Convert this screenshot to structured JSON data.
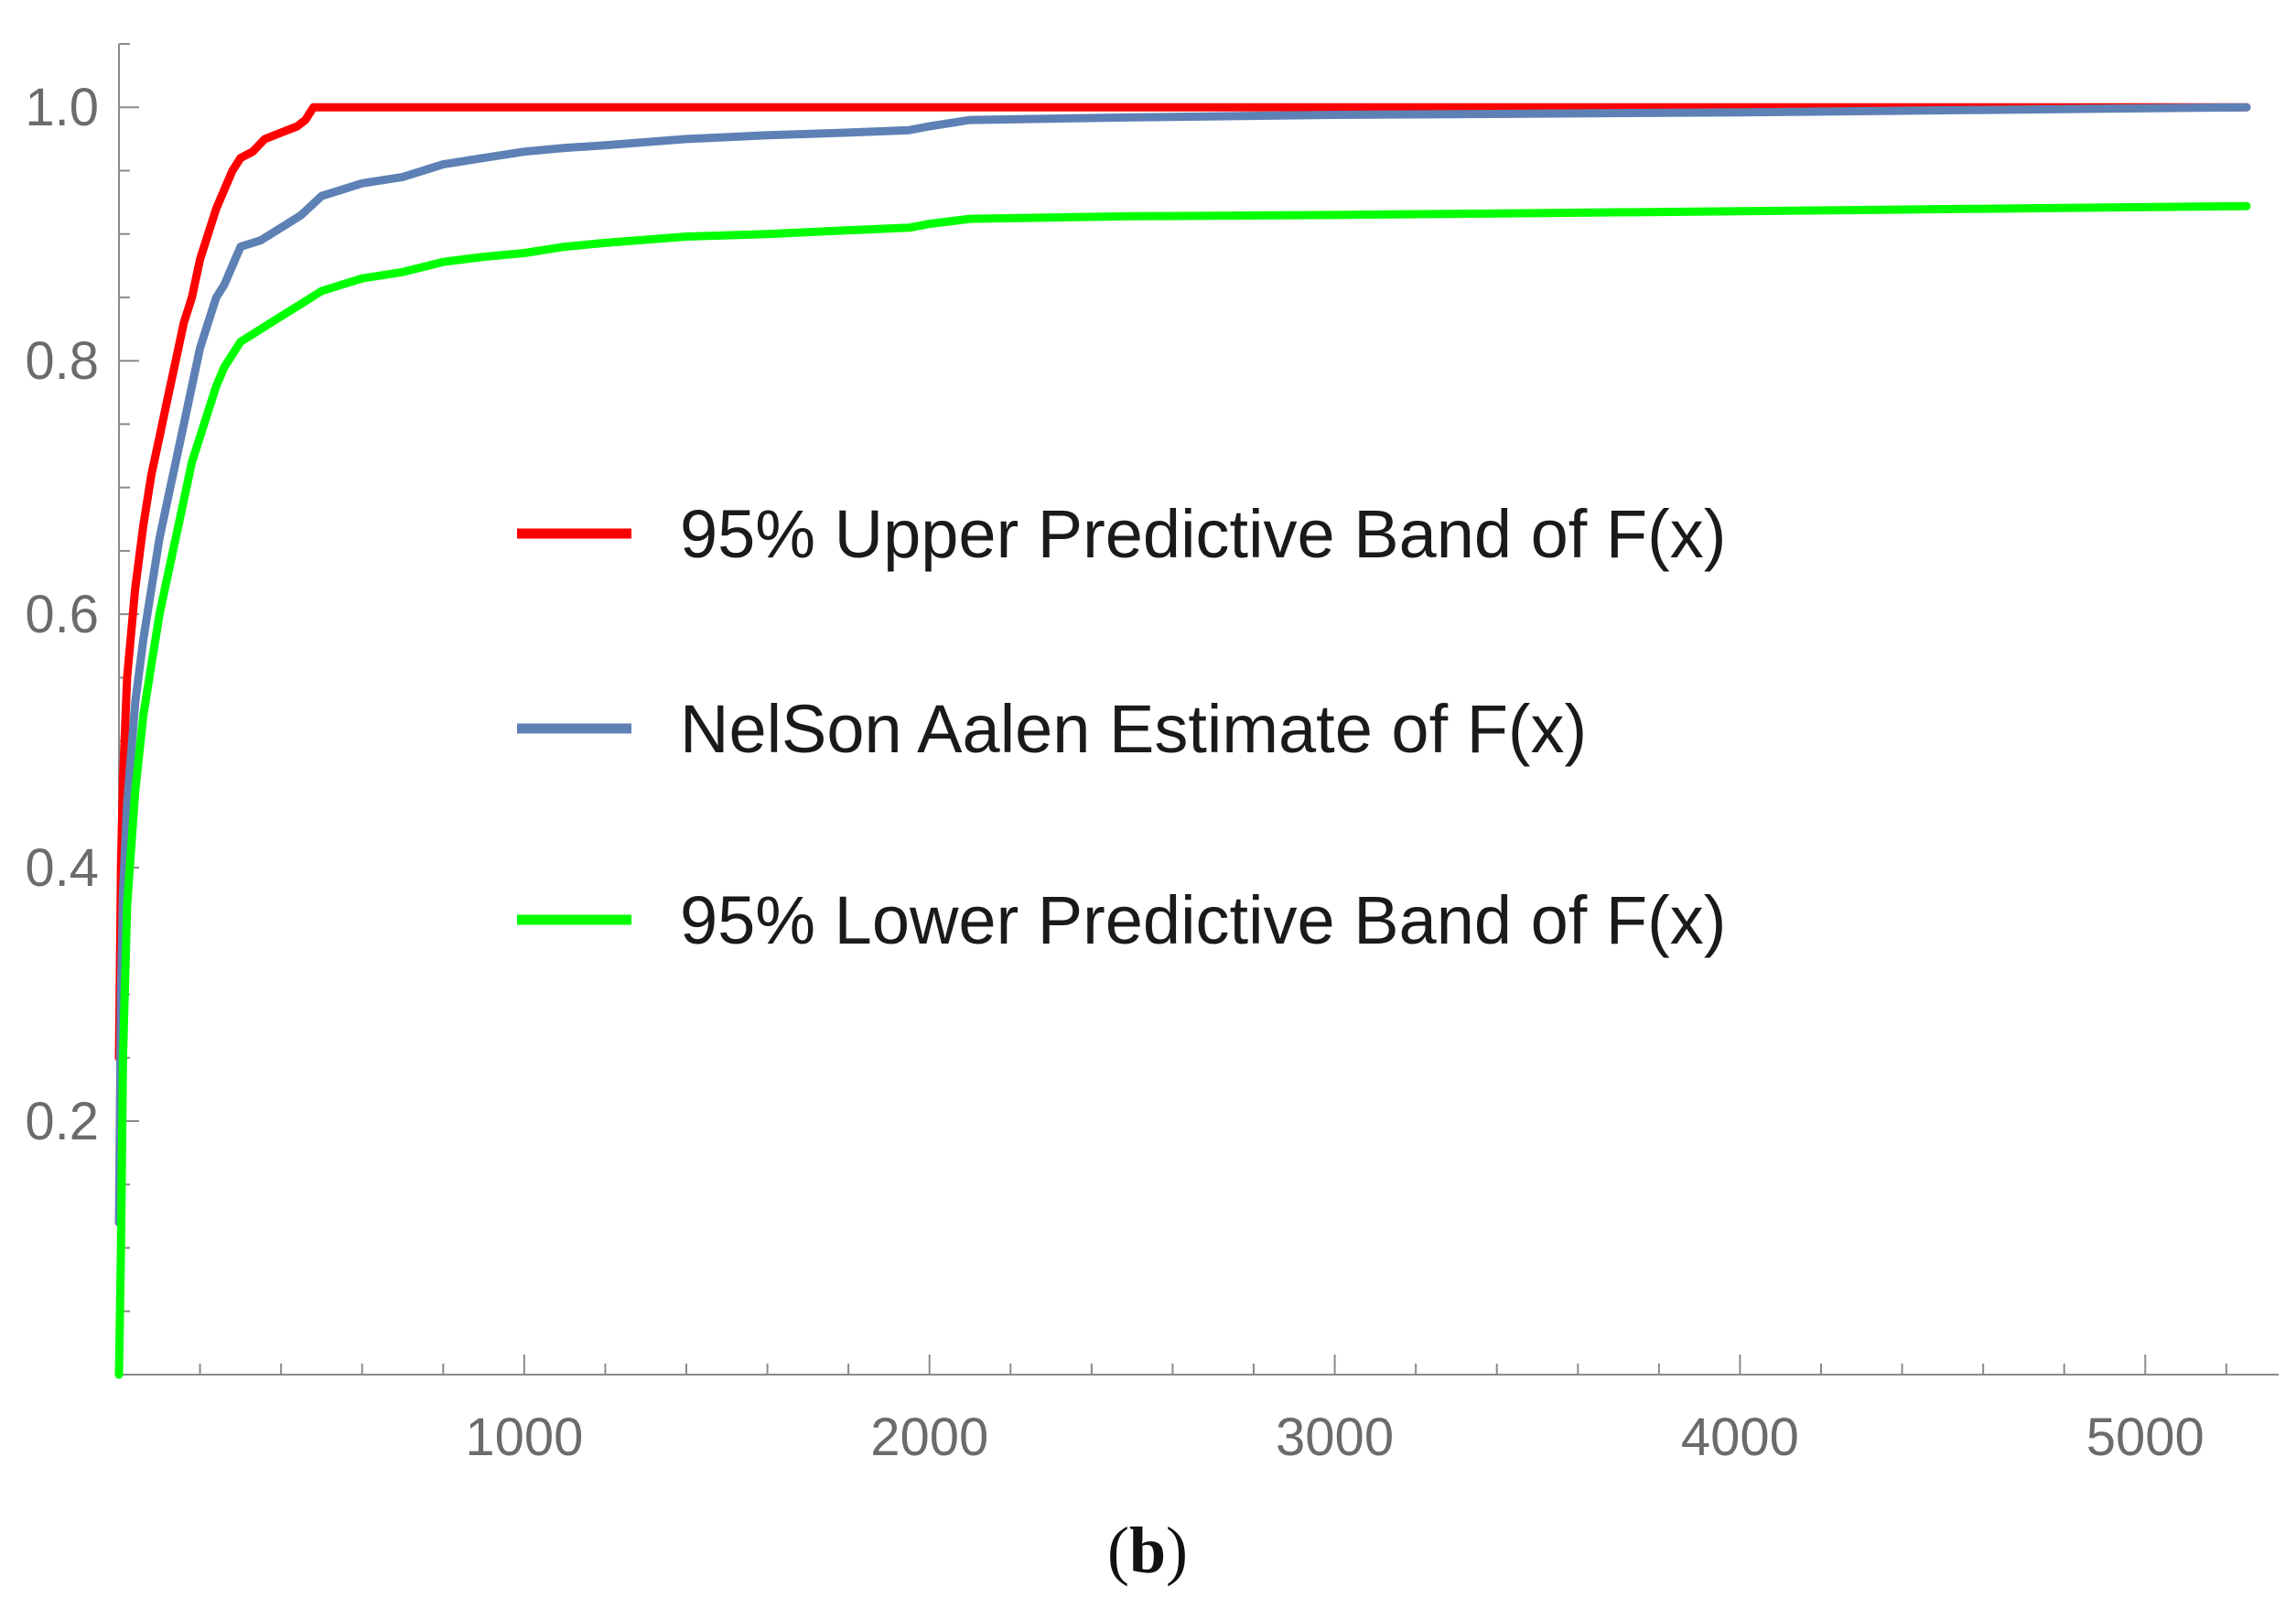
{
  "chart_data": {
    "type": "line",
    "title": "",
    "caption": {
      "open": "(",
      "letter": "b",
      "close": ")"
    },
    "xlabel": "",
    "ylabel": "",
    "xlim": [
      0,
      5250
    ],
    "ylim": [
      0,
      1.05
    ],
    "x_ticks": [
      1000,
      2000,
      3000,
      4000,
      5000
    ],
    "x_tick_labels": [
      "1000",
      "2000",
      "3000",
      "4000",
      "5000"
    ],
    "y_ticks": [
      0.2,
      0.4,
      0.6,
      0.8,
      1.0
    ],
    "y_tick_labels": [
      "0.2",
      "0.4",
      "0.6",
      "0.8",
      "1.0"
    ],
    "grid": false,
    "legend_position": "center",
    "series": [
      {
        "name": "95% Upper Predictive Band of F(x)",
        "color": "#ff0000",
        "x": [
          0,
          5,
          10,
          20,
          40,
          60,
          80,
          100,
          120,
          140,
          160,
          180,
          200,
          220,
          240,
          260,
          280,
          300,
          330,
          360,
          400,
          440,
          460,
          470,
          480,
          500,
          1000,
          2000,
          3000,
          4000,
          5250
        ],
        "y": [
          0.25,
          0.4,
          0.47,
          0.55,
          0.62,
          0.67,
          0.71,
          0.74,
          0.77,
          0.8,
          0.83,
          0.85,
          0.88,
          0.9,
          0.92,
          0.935,
          0.95,
          0.96,
          0.965,
          0.975,
          0.98,
          0.985,
          0.99,
          0.995,
          1.0,
          1.0,
          1.0,
          1.0,
          1.0,
          1.0,
          1.0
        ]
      },
      {
        "name": "NelSon Aalen Estimate of F(x)",
        "color": "#5e81b5",
        "x": [
          0,
          5,
          10,
          20,
          40,
          60,
          80,
          100,
          120,
          140,
          160,
          180,
          200,
          220,
          240,
          260,
          280,
          300,
          350,
          400,
          450,
          500,
          600,
          700,
          800,
          900,
          1000,
          1100,
          1200,
          1400,
          1600,
          1800,
          1950,
          2000,
          2100,
          2500,
          3000,
          4000,
          5250
        ],
        "y": [
          0.12,
          0.3,
          0.38,
          0.45,
          0.53,
          0.58,
          0.62,
          0.66,
          0.69,
          0.72,
          0.75,
          0.78,
          0.81,
          0.83,
          0.85,
          0.86,
          0.875,
          0.89,
          0.895,
          0.905,
          0.915,
          0.93,
          0.94,
          0.945,
          0.955,
          0.96,
          0.965,
          0.968,
          0.97,
          0.975,
          0.978,
          0.98,
          0.982,
          0.985,
          0.99,
          0.992,
          0.994,
          0.996,
          1.0
        ]
      },
      {
        "name": "95% Lower Predictive Band of F(x)",
        "color": "#00ff00",
        "x": [
          0,
          5,
          10,
          20,
          40,
          60,
          80,
          100,
          120,
          140,
          160,
          180,
          200,
          220,
          240,
          260,
          280,
          300,
          350,
          400,
          450,
          500,
          600,
          700,
          800,
          900,
          1000,
          1100,
          1200,
          1400,
          1600,
          1800,
          1950,
          2000,
          2100,
          2500,
          3000,
          4000,
          5250
        ],
        "y": [
          0.0,
          0.1,
          0.25,
          0.37,
          0.46,
          0.52,
          0.56,
          0.6,
          0.63,
          0.66,
          0.69,
          0.72,
          0.74,
          0.76,
          0.78,
          0.795,
          0.805,
          0.815,
          0.825,
          0.835,
          0.845,
          0.855,
          0.865,
          0.87,
          0.878,
          0.882,
          0.885,
          0.89,
          0.893,
          0.898,
          0.9,
          0.903,
          0.905,
          0.908,
          0.912,
          0.914,
          0.915,
          0.918,
          0.922
        ]
      }
    ]
  }
}
